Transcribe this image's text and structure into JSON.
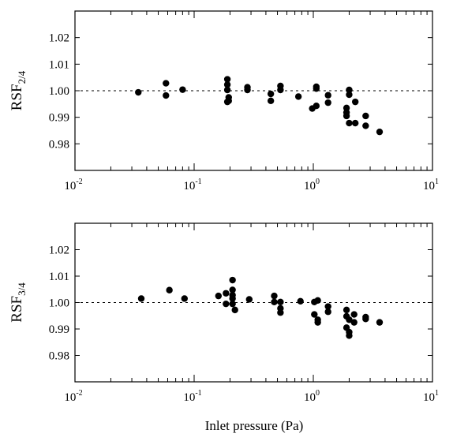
{
  "figure": {
    "xlabel": "Inlet pressure (Pa)"
  },
  "chart_data": [
    {
      "type": "scatter",
      "ylabel": {
        "main": "RSF",
        "sub": "2/4"
      },
      "xscale": "log",
      "xlim": [
        0.01,
        10
      ],
      "ylim": [
        0.97,
        1.03
      ],
      "x_tick_labels": [
        {
          "base": "10",
          "exp": "-2"
        },
        {
          "base": "10",
          "exp": "-1"
        },
        {
          "base": "10",
          "exp": "0"
        },
        {
          "base": "10",
          "exp": "1"
        }
      ],
      "y_ticks": [
        0.98,
        0.99,
        1.0,
        1.01,
        1.02
      ],
      "y_tick_labels": [
        "0.98",
        "0.99",
        "1.00",
        "1.01",
        "1.02"
      ],
      "reference_line": 1.0,
      "marker_color": "#000000",
      "points": [
        [
          0.034,
          0.9994
        ],
        [
          0.058,
          1.0028
        ],
        [
          0.058,
          0.9982
        ],
        [
          0.08,
          1.0004
        ],
        [
          0.19,
          1.0043
        ],
        [
          0.19,
          1.0023
        ],
        [
          0.19,
          1.0003
        ],
        [
          0.195,
          0.9975
        ],
        [
          0.19,
          0.9958
        ],
        [
          0.195,
          0.9962
        ],
        [
          0.28,
          1.0013
        ],
        [
          0.28,
          1.0003
        ],
        [
          0.44,
          0.9988
        ],
        [
          0.44,
          0.9962
        ],
        [
          0.53,
          1.0018
        ],
        [
          0.53,
          1.0003
        ],
        [
          0.75,
          0.9978
        ],
        [
          0.98,
          0.9933
        ],
        [
          1.06,
          1.0015
        ],
        [
          1.06,
          1.0008
        ],
        [
          1.06,
          0.9943
        ],
        [
          1.33,
          0.9983
        ],
        [
          1.33,
          0.9955
        ],
        [
          1.9,
          0.9935
        ],
        [
          1.9,
          0.9918
        ],
        [
          1.9,
          0.9905
        ],
        [
          2.0,
          1.0003
        ],
        [
          2.0,
          0.9985
        ],
        [
          2.0,
          0.9878
        ],
        [
          2.25,
          0.9958
        ],
        [
          2.25,
          0.9878
        ],
        [
          2.75,
          0.9905
        ],
        [
          2.75,
          0.9868
        ],
        [
          3.6,
          0.9845
        ]
      ]
    },
    {
      "type": "scatter",
      "ylabel": {
        "main": "RSF",
        "sub": "3/4"
      },
      "xscale": "log",
      "xlim": [
        0.01,
        10
      ],
      "ylim": [
        0.97,
        1.03
      ],
      "x_tick_labels": [
        {
          "base": "10",
          "exp": "-2"
        },
        {
          "base": "10",
          "exp": "-1"
        },
        {
          "base": "10",
          "exp": "0"
        },
        {
          "base": "10",
          "exp": "1"
        }
      ],
      "y_ticks": [
        0.98,
        0.99,
        1.0,
        1.01,
        1.02
      ],
      "y_tick_labels": [
        "0.98",
        "0.99",
        "1.00",
        "1.01",
        "1.02"
      ],
      "reference_line": 1.0,
      "marker_color": "#000000",
      "points": [
        [
          0.036,
          1.0015
        ],
        [
          0.062,
          1.0047
        ],
        [
          0.083,
          1.0015
        ],
        [
          0.16,
          1.0025
        ],
        [
          0.185,
          1.0035
        ],
        [
          0.185,
          0.9995
        ],
        [
          0.21,
          1.0085
        ],
        [
          0.21,
          1.0048
        ],
        [
          0.21,
          1.0028
        ],
        [
          0.21,
          1.0015
        ],
        [
          0.21,
          0.9995
        ],
        [
          0.22,
          0.9972
        ],
        [
          0.29,
          1.0012
        ],
        [
          0.47,
          1.0025
        ],
        [
          0.47,
          1.0002
        ],
        [
          0.53,
          1.0002
        ],
        [
          0.53,
          0.9978
        ],
        [
          0.53,
          0.9962
        ],
        [
          0.78,
          1.0005
        ],
        [
          1.02,
          1.0002
        ],
        [
          1.02,
          0.9955
        ],
        [
          1.09,
          1.0008
        ],
        [
          1.09,
          0.9935
        ],
        [
          1.09,
          0.9925
        ],
        [
          1.33,
          0.9985
        ],
        [
          1.33,
          0.9965
        ],
        [
          1.9,
          0.9972
        ],
        [
          1.9,
          0.9948
        ],
        [
          1.9,
          0.9905
        ],
        [
          2.0,
          0.9935
        ],
        [
          2.0,
          0.9888
        ],
        [
          2.0,
          0.9875
        ],
        [
          2.2,
          0.9955
        ],
        [
          2.2,
          0.9925
        ],
        [
          2.75,
          0.9945
        ],
        [
          2.75,
          0.9938
        ],
        [
          3.6,
          0.9925
        ]
      ]
    }
  ]
}
